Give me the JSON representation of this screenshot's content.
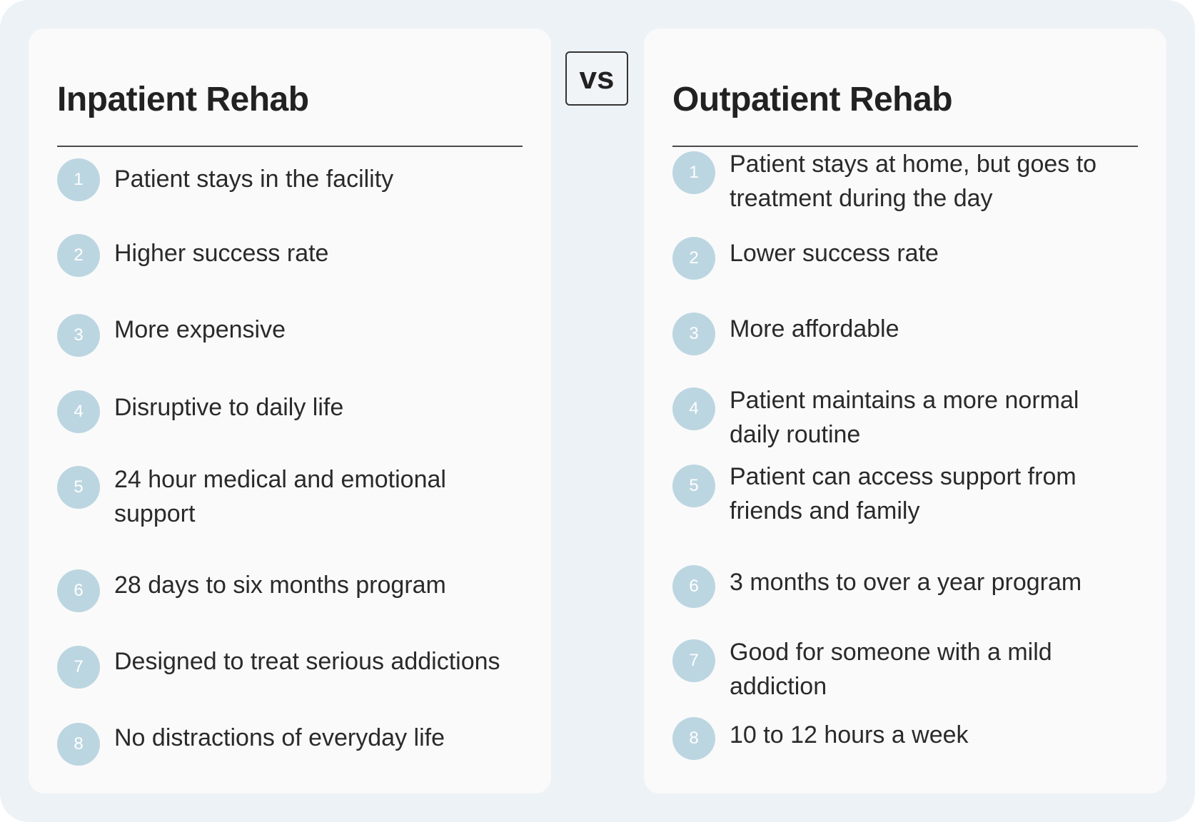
{
  "vs_label": "vs",
  "left": {
    "title": "Inpatient Rehab",
    "items": [
      {
        "num": "1",
        "text": "Patient stays in the facility"
      },
      {
        "num": "2",
        "text": "Higher success rate"
      },
      {
        "num": "3",
        "text": "More expensive"
      },
      {
        "num": "4",
        "text": "Disruptive to daily life"
      },
      {
        "num": "5",
        "text": "24 hour medical and emotional support"
      },
      {
        "num": "6",
        "text": "28 days to six months program"
      },
      {
        "num": "7",
        "text": "Designed to treat serious addictions"
      },
      {
        "num": "8",
        "text": "No distractions of everyday life"
      }
    ]
  },
  "right": {
    "title": "Outpatient Rehab",
    "items": [
      {
        "num": "1",
        "text": "Patient stays at home, but goes to treatment during the day"
      },
      {
        "num": "2",
        "text": "Lower success rate"
      },
      {
        "num": "3",
        "text": "More affordable"
      },
      {
        "num": "4",
        "text": "Patient maintains a more normal daily routine"
      },
      {
        "num": "5",
        "text": "Patient can access support from friends and family"
      },
      {
        "num": "6",
        "text": "3 months to over a year program"
      },
      {
        "num": "7",
        "text": "Good for someone with a mild addiction"
      },
      {
        "num": "8",
        "text": "10 to 12 hours a week"
      }
    ]
  },
  "colors": {
    "background": "#edf2f6",
    "panel": "#fafafa",
    "badge": "#bcd6e1",
    "text": "#2a2a2a"
  }
}
